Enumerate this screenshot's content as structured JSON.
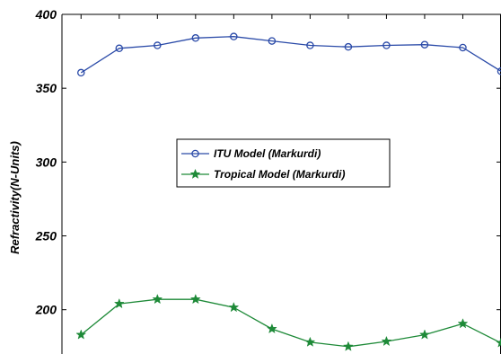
{
  "chart_data": {
    "type": "line",
    "ylabel": "Refractivity(N-Units)",
    "xlabel": "",
    "title": "",
    "ylim": [
      170,
      400
    ],
    "xlim": [
      0.5,
      12
    ],
    "yticks": [
      200,
      250,
      300,
      350,
      400
    ],
    "x": [
      1,
      2,
      3,
      4,
      5,
      6,
      7,
      8,
      9,
      10,
      11,
      12
    ],
    "grid": false,
    "legend_position": "center",
    "series": [
      {
        "name": "ITU Model (Markurdi)",
        "color": "#2a4aa8",
        "marker": "circle",
        "values": [
          360.5,
          377,
          379,
          384,
          385,
          382,
          379,
          378,
          379,
          379.5,
          377.5,
          361.5
        ]
      },
      {
        "name": "Tropical Model (Markurdi)",
        "color": "#1e8a38",
        "marker": "star",
        "values": [
          183,
          204,
          207,
          207,
          201.5,
          187,
          178,
          175,
          178.5,
          183,
          190.5,
          177.5
        ]
      }
    ]
  }
}
